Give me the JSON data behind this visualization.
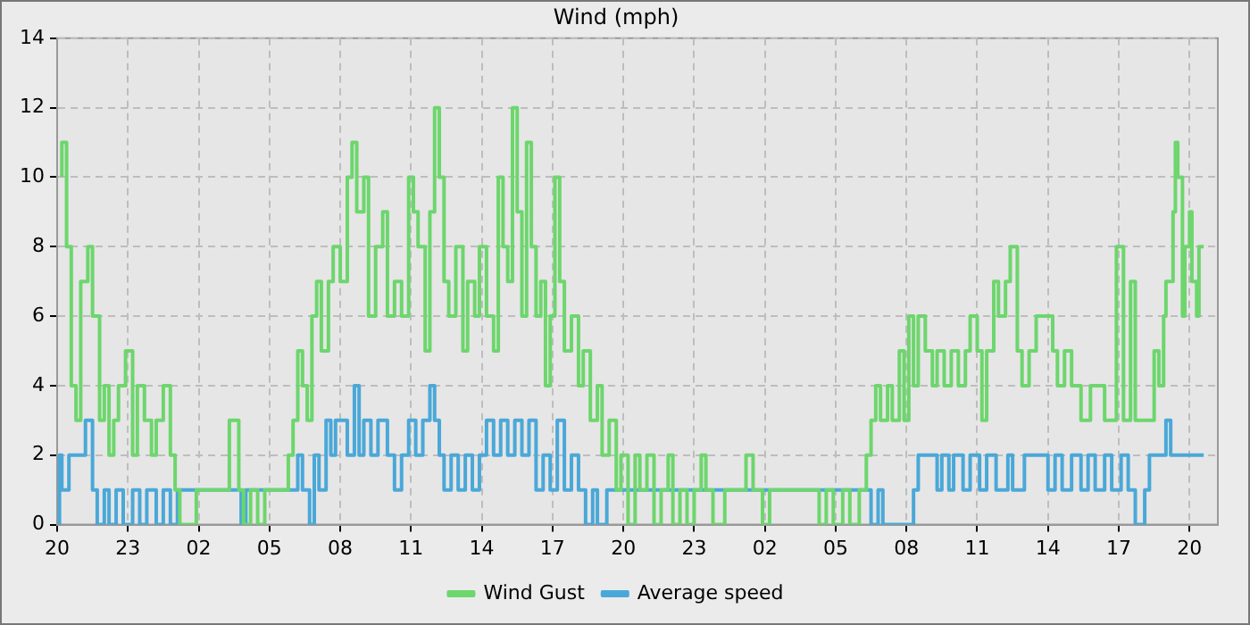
{
  "chart_data": {
    "type": "step",
    "title": "Wind (mph)",
    "xlim": [
      "--03-15T20:00",
      "--03-17T21:12"
    ],
    "xticks": [
      {
        "value": "--03-15T20:00",
        "label": "20"
      },
      {
        "value": "--03-15T23:00",
        "label": "23"
      },
      {
        "value": "--03-16T02:00",
        "label": "02"
      },
      {
        "value": "--03-16T05:00",
        "label": "05"
      },
      {
        "value": "--03-16T08:00",
        "label": "08"
      },
      {
        "value": "--03-16T11:00",
        "label": "11"
      },
      {
        "value": "--03-16T14:00",
        "label": "14"
      },
      {
        "value": "--03-16T17:00",
        "label": "17"
      },
      {
        "value": "--03-16T20:00",
        "label": "20"
      },
      {
        "value": "--03-16T23:00",
        "label": "23"
      },
      {
        "value": "--03-17T02:00",
        "label": "02"
      },
      {
        "value": "--03-17T05:00",
        "label": "05"
      },
      {
        "value": "--03-17T08:00",
        "label": "08"
      },
      {
        "value": "--03-17T11:00",
        "label": "11"
      },
      {
        "value": "--03-17T14:00",
        "label": "14"
      },
      {
        "value": "--03-17T17:00",
        "label": "17"
      },
      {
        "value": "--03-17T20:00",
        "label": "20"
      }
    ],
    "ylim": [
      0,
      14
    ],
    "yticks": [
      0,
      2,
      4,
      6,
      8,
      10,
      12,
      14
    ],
    "grid": true,
    "legend": "bottom",
    "series": [
      {
        "name": "Wind Gust",
        "color": "#6dd66d",
        "x": [
          "--03-15T20:12",
          "--03-15T20:24",
          "--03-15T20:36",
          "--03-15T20:48",
          "--03-15T21:00",
          "--03-15T21:18",
          "--03-15T21:30",
          "--03-15T21:48",
          "--03-15T22:00",
          "--03-15T22:12",
          "--03-15T22:24",
          "--03-15T22:36",
          "--03-15T22:54",
          "--03-15T23:12",
          "--03-15T23:24",
          "--03-15T23:42",
          "--03-16T00:00",
          "--03-16T00:12",
          "--03-16T00:30",
          "--03-16T00:48",
          "--03-16T01:00",
          "--03-16T01:12",
          "--03-16T01:54",
          "--03-16T03:18",
          "--03-16T03:42",
          "--03-16T03:54",
          "--03-16T04:12",
          "--03-16T04:30",
          "--03-16T04:48",
          "--03-16T05:48",
          "--03-16T06:00",
          "--03-16T06:12",
          "--03-16T06:24",
          "--03-16T06:36",
          "--03-16T06:48",
          "--03-16T07:00",
          "--03-16T07:12",
          "--03-16T07:30",
          "--03-16T07:42",
          "--03-16T08:00",
          "--03-16T08:18",
          "--03-16T08:30",
          "--03-16T08:42",
          "--03-16T09:00",
          "--03-16T09:12",
          "--03-16T09:30",
          "--03-16T09:48",
          "--03-16T10:00",
          "--03-16T10:18",
          "--03-16T10:36",
          "--03-16T10:54",
          "--03-16T11:06",
          "--03-16T11:18",
          "--03-16T11:36",
          "--03-16T11:48",
          "--03-16T12:00",
          "--03-16T12:12",
          "--03-16T12:24",
          "--03-16T12:36",
          "--03-16T12:54",
          "--03-16T13:12",
          "--03-16T13:24",
          "--03-16T13:42",
          "--03-16T13:54",
          "--03-16T14:12",
          "--03-16T14:30",
          "--03-16T14:42",
          "--03-16T14:54",
          "--03-16T15:06",
          "--03-16T15:18",
          "--03-16T15:30",
          "--03-16T15:42",
          "--03-16T15:54",
          "--03-16T16:06",
          "--03-16T16:18",
          "--03-16T16:30",
          "--03-16T16:42",
          "--03-16T16:54",
          "--03-16T17:06",
          "--03-16T17:18",
          "--03-16T17:30",
          "--03-16T17:48",
          "--03-16T18:06",
          "--03-16T18:18",
          "--03-16T18:36",
          "--03-16T18:54",
          "--03-16T19:06",
          "--03-16T19:24",
          "--03-16T19:42",
          "--03-16T19:54",
          "--03-16T20:12",
          "--03-16T20:30",
          "--03-16T20:42",
          "--03-16T21:00",
          "--03-16T21:18",
          "--03-16T21:36",
          "--03-16T21:54",
          "--03-16T22:06",
          "--03-16T22:24",
          "--03-16T22:42",
          "--03-16T23:00",
          "--03-16T23:18",
          "--03-16T23:30",
          "--03-16T23:48",
          "--03-17T00:18",
          "--03-17T01:12",
          "--03-17T01:30",
          "--03-17T01:54",
          "--03-17T02:12",
          "--03-17T04:18",
          "--03-17T04:36",
          "--03-17T04:54",
          "--03-17T05:18",
          "--03-17T05:36",
          "--03-17T06:00",
          "--03-17T06:18",
          "--03-17T06:30",
          "--03-17T06:42",
          "--03-17T06:54",
          "--03-17T07:12",
          "--03-17T07:24",
          "--03-17T07:42",
          "--03-17T07:54",
          "--03-17T08:06",
          "--03-17T08:18",
          "--03-17T08:30",
          "--03-17T08:48",
          "--03-17T09:06",
          "--03-17T09:18",
          "--03-17T09:36",
          "--03-17T09:54",
          "--03-17T10:12",
          "--03-17T10:30",
          "--03-17T10:42",
          "--03-17T11:00",
          "--03-17T11:12",
          "--03-17T11:24",
          "--03-17T11:42",
          "--03-17T11:54",
          "--03-17T12:12",
          "--03-17T12:24",
          "--03-17T12:42",
          "--03-17T12:54",
          "--03-17T13:12",
          "--03-17T13:30",
          "--03-17T14:00",
          "--03-17T14:12",
          "--03-17T14:24",
          "--03-17T14:42",
          "--03-17T15:00",
          "--03-17T15:24",
          "--03-17T15:48",
          "--03-17T16:24",
          "--03-17T16:54",
          "--03-17T17:12",
          "--03-17T17:30",
          "--03-17T17:42",
          "--03-17T18:06",
          "--03-17T18:30",
          "--03-17T18:42",
          "--03-17T18:54",
          "--03-17T19:00",
          "--03-17T19:18",
          "--03-17T19:24",
          "--03-17T19:30",
          "--03-17T19:42",
          "--03-17T19:48",
          "--03-17T20:00",
          "--03-17T20:06",
          "--03-17T20:18",
          "--03-17T20:24",
          "--03-17T20:36"
        ],
        "values": [
          10,
          11,
          8,
          4,
          3,
          7,
          8,
          6,
          3,
          4,
          2,
          3,
          4,
          5,
          2,
          4,
          3,
          2,
          3,
          4,
          2,
          1,
          0,
          1,
          3,
          1,
          0,
          1,
          0,
          1,
          2,
          3,
          5,
          4,
          3,
          6,
          7,
          5,
          7,
          8,
          7,
          10,
          11,
          9,
          10,
          6,
          8,
          9,
          6,
          7,
          6,
          10,
          9,
          8,
          5,
          9,
          12,
          10,
          7,
          6,
          8,
          5,
          7,
          6,
          8,
          6,
          5,
          10,
          8,
          7,
          12,
          9,
          6,
          11,
          8,
          6,
          7,
          4,
          6,
          10,
          7,
          5,
          6,
          4,
          5,
          3,
          4,
          2,
          3,
          1,
          2,
          0,
          2,
          1,
          2,
          0,
          1,
          2,
          0,
          1,
          0,
          1,
          2,
          1,
          0,
          1,
          2,
          1,
          0,
          1,
          0,
          1,
          0,
          1,
          0,
          1,
          2,
          3,
          4,
          3,
          4,
          3,
          5,
          3,
          6,
          4,
          6,
          5,
          4,
          5,
          4,
          5,
          4,
          5,
          6,
          5,
          3,
          5,
          7,
          6,
          7,
          8,
          5,
          4,
          5,
          6,
          6,
          5,
          4,
          5,
          4,
          3,
          4,
          3,
          8,
          3,
          7,
          3,
          3,
          5,
          4,
          6,
          7,
          9,
          11,
          10,
          6,
          8,
          9,
          7,
          6,
          8
        ]
      },
      {
        "name": "Average speed",
        "color": "#4aa8d8",
        "x": [
          "--03-15T20:06",
          "--03-15T20:12",
          "--03-15T20:30",
          "--03-15T21:12",
          "--03-15T21:30",
          "--03-15T21:42",
          "--03-15T22:00",
          "--03-15T22:12",
          "--03-15T22:30",
          "--03-15T22:48",
          "--03-15T23:12",
          "--03-15T23:30",
          "--03-15T23:48",
          "--03-16T00:12",
          "--03-16T00:30",
          "--03-16T00:48",
          "--03-16T01:06",
          "--03-16T03:48",
          "--03-16T04:00",
          "--03-16T06:12",
          "--03-16T06:24",
          "--03-16T06:42",
          "--03-16T06:54",
          "--03-16T07:06",
          "--03-16T07:24",
          "--03-16T07:36",
          "--03-16T07:48",
          "--03-16T08:18",
          "--03-16T08:36",
          "--03-16T08:48",
          "--03-16T09:00",
          "--03-16T09:18",
          "--03-16T09:36",
          "--03-16T10:00",
          "--03-16T10:18",
          "--03-16T10:36",
          "--03-16T10:54",
          "--03-16T11:12",
          "--03-16T11:30",
          "--03-16T11:48",
          "--03-16T12:00",
          "--03-16T12:12",
          "--03-16T12:24",
          "--03-16T12:42",
          "--03-16T13:00",
          "--03-16T13:18",
          "--03-16T13:36",
          "--03-16T13:54",
          "--03-16T14:12",
          "--03-16T14:30",
          "--03-16T14:48",
          "--03-16T15:06",
          "--03-16T15:24",
          "--03-16T15:42",
          "--03-16T16:00",
          "--03-16T16:18",
          "--03-16T16:36",
          "--03-16T16:54",
          "--03-16T17:12",
          "--03-16T17:30",
          "--03-16T17:48",
          "--03-16T18:06",
          "--03-16T18:24",
          "--03-16T18:42",
          "--03-16T18:54",
          "--03-16T19:18",
          "--03-17T06:30",
          "--03-17T06:48",
          "--03-17T07:00",
          "--03-17T08:18",
          "--03-17T08:30",
          "--03-17T09:18",
          "--03-17T09:30",
          "--03-17T09:48",
          "--03-17T10:00",
          "--03-17T10:24",
          "--03-17T10:42",
          "--03-17T11:06",
          "--03-17T11:24",
          "--03-17T11:48",
          "--03-17T12:18",
          "--03-17T12:30",
          "--03-17T13:00",
          "--03-17T13:18",
          "--03-17T14:00",
          "--03-17T14:18",
          "--03-17T14:36",
          "--03-17T15:00",
          "--03-17T15:24",
          "--03-17T15:42",
          "--03-17T16:00",
          "--03-17T16:24",
          "--03-17T16:42",
          "--03-17T17:06",
          "--03-17T17:24",
          "--03-17T17:42",
          "--03-17T18:06",
          "--03-17T18:18",
          "--03-17T19:00",
          "--03-17T19:12",
          "--03-17T19:36",
          "--03-17T20:36"
        ],
        "values": [
          0,
          2,
          1,
          2,
          3,
          1,
          0,
          1,
          0,
          1,
          0,
          1,
          0,
          1,
          0,
          1,
          0,
          1,
          0,
          1,
          2,
          1,
          0,
          2,
          1,
          3,
          2,
          3,
          2,
          4,
          2,
          3,
          2,
          3,
          2,
          1,
          2,
          3,
          2,
          3,
          4,
          3,
          2,
          1,
          2,
          1,
          2,
          1,
          2,
          3,
          2,
          3,
          2,
          3,
          2,
          3,
          1,
          2,
          1,
          3,
          1,
          2,
          1,
          0,
          1,
          0,
          1,
          0,
          1,
          0,
          1,
          2,
          1,
          2,
          1,
          2,
          1,
          2,
          1,
          2,
          1,
          2,
          1,
          2,
          2,
          1,
          2,
          1,
          2,
          1,
          2,
          1,
          2,
          1,
          2,
          1,
          0,
          1,
          2,
          3,
          2,
          2
        ]
      }
    ]
  }
}
